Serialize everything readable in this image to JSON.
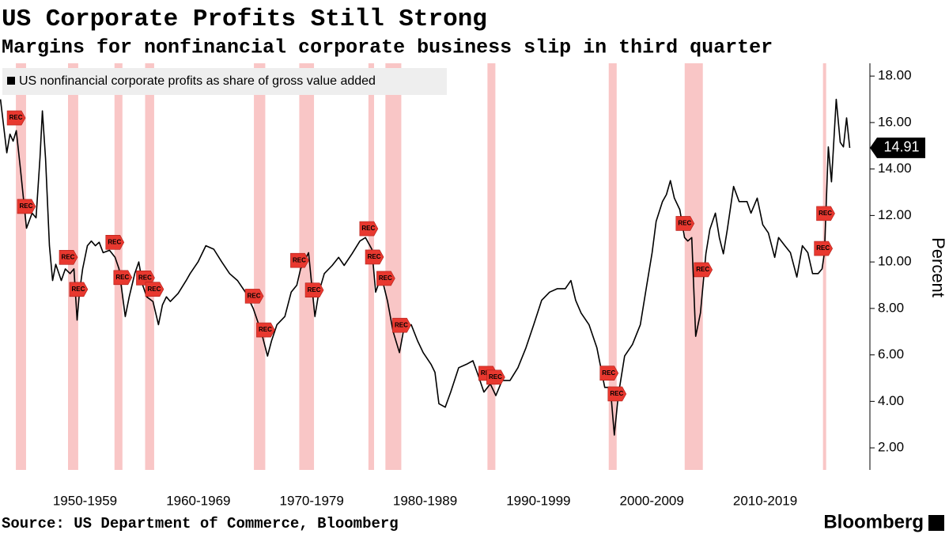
{
  "chart_data": {
    "type": "line",
    "title": "US Corporate Profits Still Strong",
    "subtitle": "Margins for nonfinancial corporate business slip in third quarter",
    "y_axis_label": "Percent",
    "source": "Source: US Department of Commerce, Bloomberg",
    "brand": "Bloomberg",
    "recession_label": "REC",
    "band_color": "#f9c6c6",
    "flag_color": "#e8382f",
    "x": [
      1947.54,
      1948.1,
      1948.38,
      1948.66,
      1948.94,
      1949.29,
      1949.84,
      1950.33,
      1950.68,
      1951.03,
      1951.24,
      1951.52,
      1951.86,
      1952.14,
      1952.42,
      1952.91,
      1953.26,
      1953.68,
      1954.02,
      1954.3,
      1954.51,
      1954.79,
      1955.21,
      1955.56,
      1955.91,
      1956.25,
      1956.6,
      1957.16,
      1957.65,
      1958.0,
      1958.55,
      1958.9,
      1959.39,
      1959.74,
      1960.09,
      1960.44,
      1960.99,
      1961.48,
      1961.83,
      1962.18,
      1962.53,
      1963.22,
      1963.92,
      1964.27,
      1964.97,
      1965.66,
      1966.36,
      1967.06,
      1967.75,
      1968.45,
      1969.15,
      1969.84,
      1970.54,
      1971.1,
      1971.45,
      1971.93,
      1972.63,
      1973.19,
      1973.68,
      1974.02,
      1974.72,
      1974.93,
      1975.28,
      1975.63,
      1976.11,
      1976.81,
      1977.37,
      1977.86,
      1978.55,
      1979.25,
      1979.74,
      1980.3,
      1980.64,
      1980.99,
      1981.34,
      1981.69,
      1982.18,
      1982.74,
      1983.08,
      1983.78,
      1984.34,
      1984.83,
      1985.52,
      1985.87,
      1986.22,
      1986.78,
      1987.26,
      1987.96,
      1988.66,
      1989.22,
      1989.7,
      1990.19,
      1990.75,
      1991.24,
      1991.79,
      1992.49,
      1993.19,
      1993.89,
      1994.58,
      1995.28,
      1995.98,
      1996.67,
      1997.37,
      1997.86,
      1998.28,
      1998.76,
      1999.46,
      2000.16,
      2000.85,
      2001.34,
      2001.69,
      2002.04,
      2002.6,
      2003.29,
      2003.99,
      2004.55,
      2005.03,
      2005.38,
      2005.94,
      2006.29,
      2006.64,
      2006.99,
      2007.47,
      2007.89,
      2008.17,
      2008.52,
      2008.87,
      2009.29,
      2009.77,
      2010.12,
      2010.61,
      2010.96,
      2011.31,
      2011.66,
      2012.21,
      2012.7,
      2013.4,
      2013.75,
      2014.3,
      2014.79,
      2015.28,
      2015.84,
      2016.18,
      2016.74,
      2017.23,
      2017.79,
      2018.28,
      2018.76,
      2019.18,
      2019.67,
      2020.02,
      2020.23,
      2020.57,
      2020.85,
      2021.27,
      2021.62,
      2021.9,
      2022.18,
      2022.46
    ],
    "series": [
      {
        "name": "US nonfinancial corporate profits as share of gross value added",
        "color": "#000000",
        "values": [
          17.0,
          14.7,
          15.5,
          15.2,
          15.65,
          14.05,
          11.45,
          12.1,
          11.9,
          14.5,
          16.5,
          14.45,
          10.7,
          9.2,
          9.9,
          9.2,
          9.7,
          9.5,
          9.7,
          7.5,
          8.7,
          9.7,
          10.7,
          10.9,
          10.7,
          10.85,
          10.4,
          10.5,
          10.2,
          9.7,
          7.65,
          8.5,
          9.5,
          10.0,
          9.0,
          8.5,
          8.3,
          7.3,
          8.15,
          8.5,
          8.3,
          8.65,
          9.2,
          9.5,
          10.0,
          10.7,
          10.55,
          10.0,
          9.5,
          9.2,
          8.7,
          8.0,
          7.0,
          5.95,
          6.6,
          7.3,
          7.65,
          8.7,
          9.0,
          9.7,
          10.4,
          9.35,
          7.65,
          8.7,
          9.5,
          9.85,
          10.2,
          9.85,
          10.35,
          10.9,
          11.05,
          10.55,
          8.7,
          9.2,
          9.0,
          8.3,
          7.0,
          6.1,
          7.0,
          7.3,
          6.6,
          6.1,
          5.6,
          5.25,
          3.9,
          3.75,
          4.4,
          5.45,
          5.6,
          5.75,
          5.1,
          4.4,
          4.75,
          4.25,
          4.9,
          4.9,
          5.45,
          6.3,
          7.3,
          8.35,
          8.7,
          8.85,
          8.85,
          9.2,
          8.35,
          7.8,
          7.3,
          6.3,
          4.6,
          4.6,
          2.55,
          4.25,
          5.95,
          6.45,
          7.3,
          9.0,
          10.4,
          11.75,
          12.6,
          12.9,
          13.5,
          12.75,
          12.25,
          11.05,
          10.9,
          11.05,
          6.8,
          7.8,
          10.35,
          11.4,
          12.1,
          11.05,
          10.35,
          11.4,
          13.25,
          12.6,
          12.6,
          12.1,
          12.75,
          11.6,
          11.25,
          10.2,
          11.05,
          10.7,
          10.4,
          9.35,
          10.7,
          10.4,
          9.5,
          9.5,
          9.7,
          10.4,
          14.95,
          13.45,
          17.0,
          15.15,
          14.95,
          16.2,
          14.91
        ]
      }
    ],
    "recessions": [
      [
        1948.9,
        1949.8
      ],
      [
        1953.5,
        1954.4
      ],
      [
        1957.6,
        1958.3
      ],
      [
        1960.3,
        1961.1
      ],
      [
        1969.9,
        1970.9
      ],
      [
        1973.9,
        1975.2
      ],
      [
        1980.0,
        1980.5
      ],
      [
        1981.5,
        1982.9
      ],
      [
        1990.5,
        1991.2
      ],
      [
        2001.2,
        2001.9
      ],
      [
        2007.9,
        2009.5
      ],
      [
        2020.1,
        2020.3
      ]
    ],
    "xlim": [
      1947.5,
      2024.1
    ],
    "xticks": [
      {
        "value": 1955,
        "label": "1950-1959"
      },
      {
        "value": 1965,
        "label": "1960-1969"
      },
      {
        "value": 1975,
        "label": "1970-1979"
      },
      {
        "value": 1985,
        "label": "1980-1989"
      },
      {
        "value": 1995,
        "label": "1990-1999"
      },
      {
        "value": 2005,
        "label": "2000-2009"
      },
      {
        "value": 2015,
        "label": "2010-2019"
      }
    ],
    "ylim": [
      1.05,
      18.55
    ],
    "yticks": [
      {
        "value": 2,
        "label": "2.00"
      },
      {
        "value": 4,
        "label": "4.00"
      },
      {
        "value": 6,
        "label": "6.00"
      },
      {
        "value": 8,
        "label": "8.00"
      },
      {
        "value": 10,
        "label": "10.00"
      },
      {
        "value": 12,
        "label": "12.00"
      },
      {
        "value": 14,
        "label": "14.00"
      },
      {
        "value": 16,
        "label": "16.00"
      },
      {
        "value": 18,
        "label": "18.00"
      }
    ]
  }
}
